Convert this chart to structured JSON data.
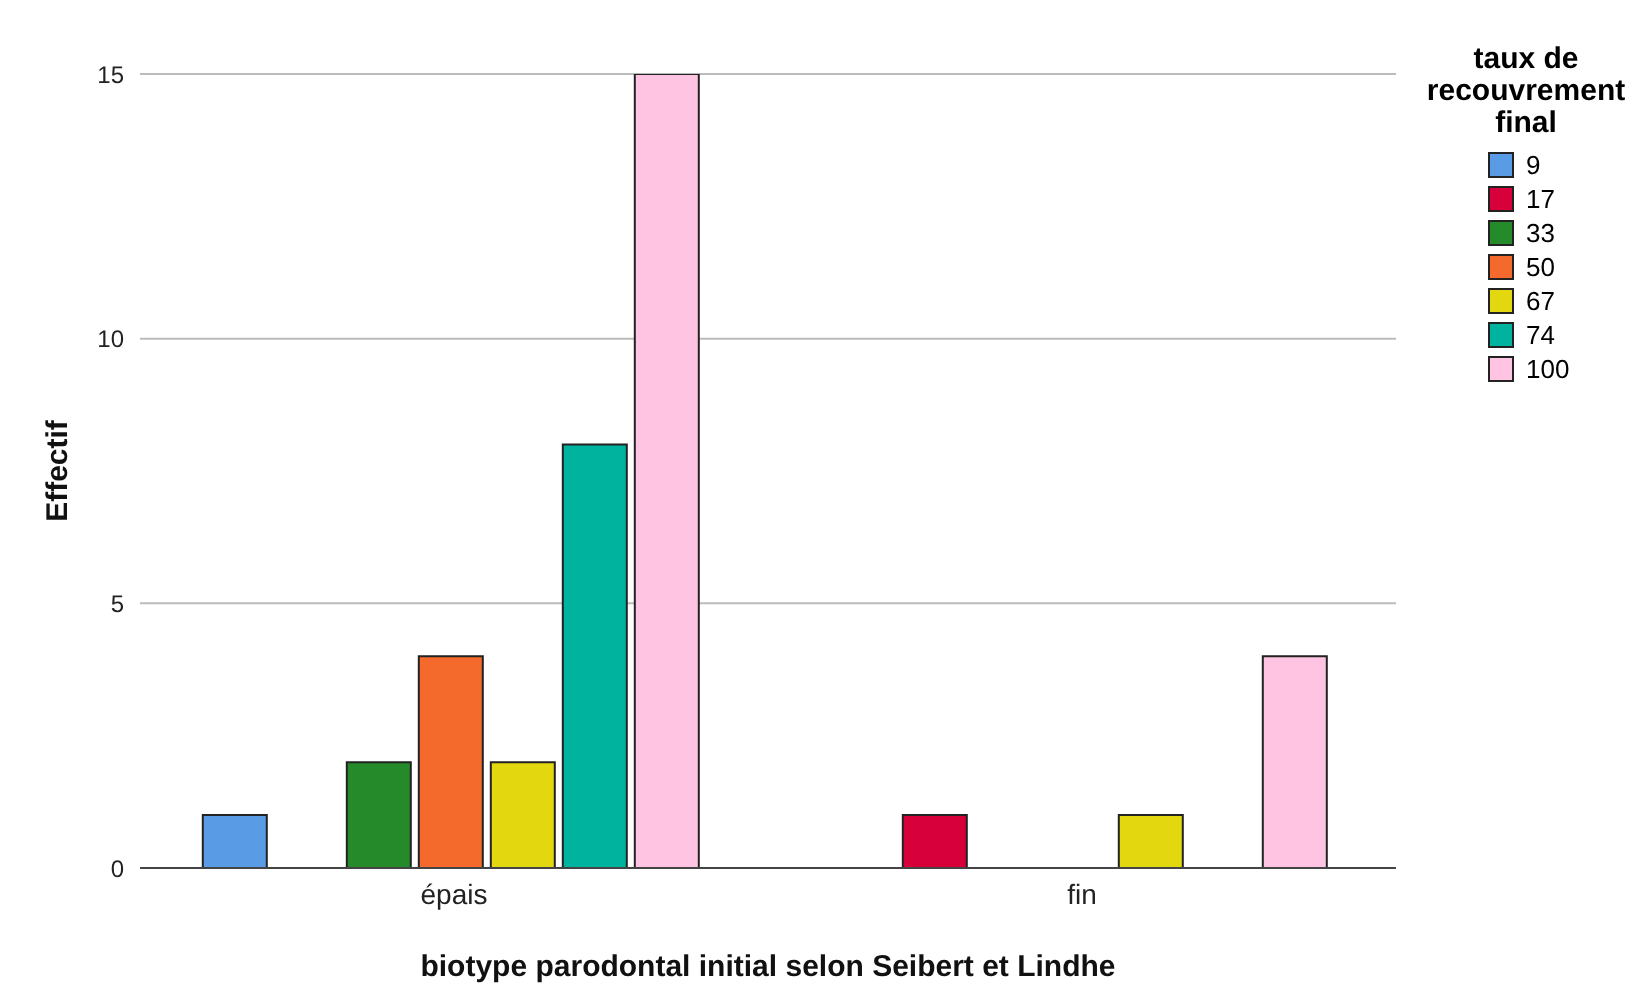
{
  "chart_data": {
    "type": "bar",
    "xlabel": "biotype parodontal initial selon Seibert et Lindhe",
    "ylabel": "Effectif",
    "legend_title": "taux de recouvrement final",
    "categories": [
      "épais",
      "fin"
    ],
    "series": [
      {
        "name": "9",
        "color": "#5a9be6",
        "values": [
          1,
          0
        ]
      },
      {
        "name": "17",
        "color": "#d7003a",
        "values": [
          0,
          1
        ]
      },
      {
        "name": "33",
        "color": "#258a2a",
        "values": [
          2,
          0
        ]
      },
      {
        "name": "50",
        "color": "#f46a2c",
        "values": [
          4,
          0
        ]
      },
      {
        "name": "67",
        "color": "#e3d70f",
        "values": [
          2,
          1
        ]
      },
      {
        "name": "74",
        "color": "#00b39f",
        "values": [
          8,
          0
        ]
      },
      {
        "name": "100",
        "color": "#ffc4e1",
        "values": [
          15,
          4
        ]
      }
    ],
    "ylim": [
      0,
      15
    ],
    "yticks": [
      0,
      5,
      10,
      15
    ],
    "grid": "y",
    "legend": "right"
  }
}
